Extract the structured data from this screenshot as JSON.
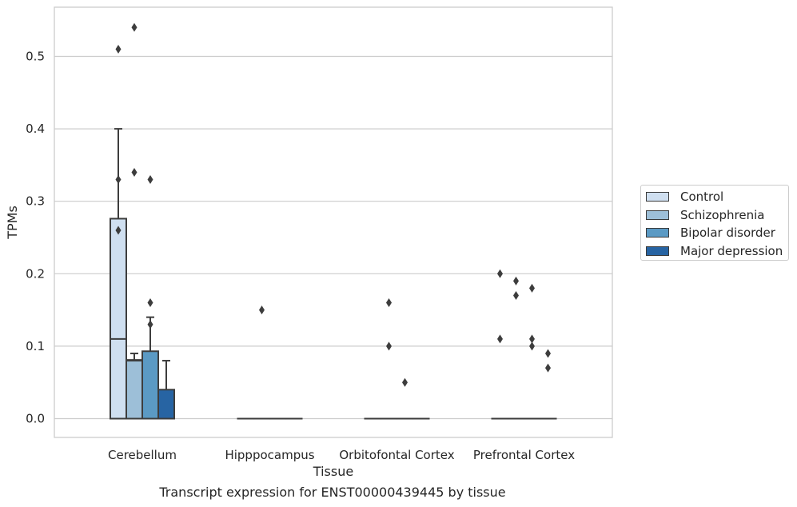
{
  "chart_data": {
    "type": "box",
    "caption": "Transcript expression for ENST00000439445 by tissue",
    "xlabel": "Tissue",
    "ylabel": "TPMs",
    "ylim": [
      -0.026,
      0.567
    ],
    "yticks": [
      0.0,
      0.1,
      0.2,
      0.3,
      0.4,
      0.5
    ],
    "ytick_labels": [
      "0.0",
      "0.1",
      "0.2",
      "0.3",
      "0.4",
      "0.5"
    ],
    "grid": "horizontal",
    "legend_position": "right",
    "categories": [
      "Cerebellum",
      "Hipppocampus",
      "Orbitofontal Cortex",
      "Prefrontal Cortex"
    ],
    "series": [
      {
        "name": "Control",
        "color": "#cfdff0",
        "boxes": [
          {
            "q1": 0.0,
            "median": 0.11,
            "q3": 0.276,
            "whisker_low": 0.0,
            "whisker_high": 0.4,
            "outliers": [
              0.51,
              0.33,
              0.26
            ]
          },
          {
            "q1": 0.0,
            "median": 0.0,
            "q3": 0.0,
            "whisker_low": 0.0,
            "whisker_high": 0.0,
            "outliers": []
          },
          {
            "q1": 0.0,
            "median": 0.0,
            "q3": 0.0,
            "whisker_low": 0.0,
            "whisker_high": 0.0,
            "outliers": []
          },
          {
            "q1": 0.0,
            "median": 0.0,
            "q3": 0.0,
            "whisker_low": 0.0,
            "whisker_high": 0.0,
            "outliers": [
              0.2,
              0.11
            ]
          }
        ]
      },
      {
        "name": "Schizophrenia",
        "color": "#9dbfd8",
        "boxes": [
          {
            "q1": 0.0,
            "median": 0.08,
            "q3": 0.081,
            "whisker_low": 0.0,
            "whisker_high": 0.09,
            "outliers": [
              0.54,
              0.34
            ]
          },
          {
            "q1": 0.0,
            "median": 0.0,
            "q3": 0.0,
            "whisker_low": 0.0,
            "whisker_high": 0.0,
            "outliers": [
              0.15
            ]
          },
          {
            "q1": 0.0,
            "median": 0.0,
            "q3": 0.0,
            "whisker_low": 0.0,
            "whisker_high": 0.0,
            "outliers": [
              0.16,
              0.1
            ]
          },
          {
            "q1": 0.0,
            "median": 0.0,
            "q3": 0.0,
            "whisker_low": 0.0,
            "whisker_high": 0.0,
            "outliers": [
              0.19,
              0.17
            ]
          }
        ]
      },
      {
        "name": "Bipolar disorder",
        "color": "#5b9ac4",
        "boxes": [
          {
            "q1": 0.0,
            "median": 0.0,
            "q3": 0.093,
            "whisker_low": 0.0,
            "whisker_high": 0.14,
            "outliers": [
              0.33,
              0.16,
              0.13
            ]
          },
          {
            "q1": 0.0,
            "median": 0.0,
            "q3": 0.0,
            "whisker_low": 0.0,
            "whisker_high": 0.0,
            "outliers": []
          },
          {
            "q1": 0.0,
            "median": 0.0,
            "q3": 0.0,
            "whisker_low": 0.0,
            "whisker_high": 0.0,
            "outliers": [
              0.05
            ]
          },
          {
            "q1": 0.0,
            "median": 0.0,
            "q3": 0.0,
            "whisker_low": 0.0,
            "whisker_high": 0.0,
            "outliers": [
              0.18,
              0.11,
              0.1
            ]
          }
        ]
      },
      {
        "name": "Major depression",
        "color": "#2764a3",
        "boxes": [
          {
            "q1": 0.0,
            "median": 0.0,
            "q3": 0.04,
            "whisker_low": 0.0,
            "whisker_high": 0.08,
            "outliers": []
          },
          {
            "q1": 0.0,
            "median": 0.0,
            "q3": 0.0,
            "whisker_low": 0.0,
            "whisker_high": 0.0,
            "outliers": []
          },
          {
            "q1": 0.0,
            "median": 0.0,
            "q3": 0.0,
            "whisker_low": 0.0,
            "whisker_high": 0.0,
            "outliers": []
          },
          {
            "q1": 0.0,
            "median": 0.0,
            "q3": 0.0,
            "whisker_low": 0.0,
            "whisker_high": 0.0,
            "outliers": [
              0.09,
              0.07
            ]
          }
        ]
      }
    ]
  }
}
